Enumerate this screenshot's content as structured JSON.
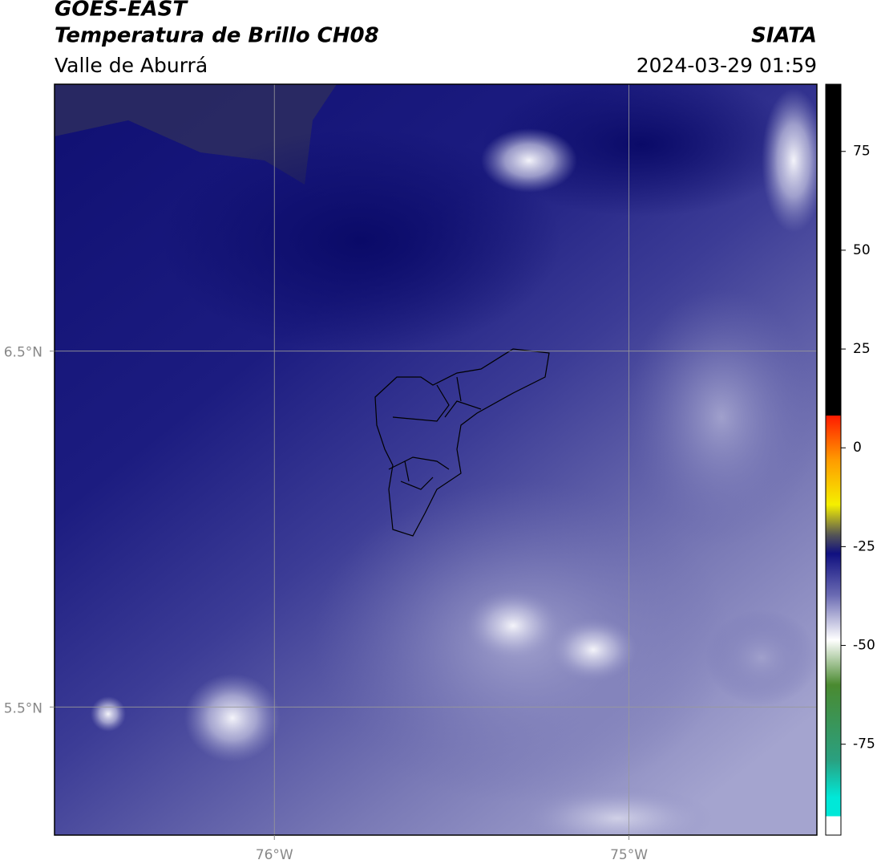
{
  "header": {
    "title": "GOES-EAST",
    "subtitle": "Temperatura de Brillo CH08",
    "region": "Valle de Aburrá",
    "agency": "SIATA",
    "datetime": "2024-03-29 01:59"
  },
  "map": {
    "xlim": [
      -76.62,
      -74.47
    ],
    "ylim": [
      5.14,
      7.25
    ],
    "xticks": [
      {
        "value": -76,
        "label": "76°W"
      },
      {
        "value": -75,
        "label": "75°W"
      }
    ],
    "yticks": [
      {
        "value": 6.5,
        "label": "6.5°N"
      },
      {
        "value": 5.5,
        "label": "5.5°N"
      }
    ],
    "grid": true
  },
  "colorbar": {
    "lim": [
      -98,
      92
    ],
    "ticks": [
      75,
      50,
      25,
      0,
      -25,
      -50,
      -75
    ]
  }
}
